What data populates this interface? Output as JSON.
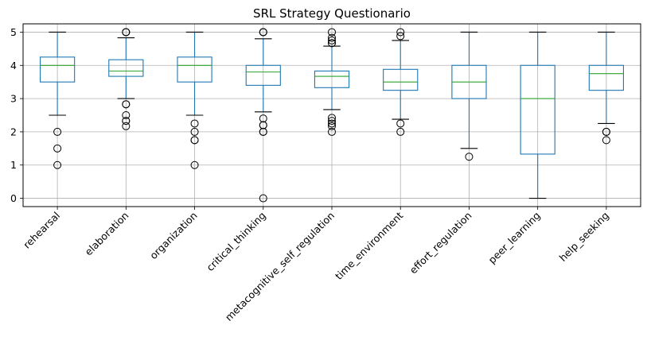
{
  "chart_data": {
    "type": "box",
    "title": "SRL Strategy Questionario",
    "xlabel": "",
    "ylabel": "",
    "ylim": [
      -0.25,
      5.25
    ],
    "yticks": [
      0,
      1,
      2,
      3,
      4,
      5
    ],
    "grid": true,
    "categories": [
      "rehearsal",
      "elaboration",
      "organization",
      "critical_thinking",
      "metacognitive_self_regulation",
      "time_environment",
      "effort_regulation",
      "peer_learning",
      "help_seeking"
    ],
    "boxes": [
      {
        "whisker_low": 2.5,
        "q1": 3.5,
        "median": 4.0,
        "q3": 4.25,
        "whisker_high": 5.0,
        "outliers": [
          2.0,
          1.5,
          1.0
        ]
      },
      {
        "whisker_low": 3.0,
        "q1": 3.67,
        "median": 3.83,
        "q3": 4.17,
        "whisker_high": 4.83,
        "outliers": [
          2.83,
          2.83,
          2.5,
          2.33,
          2.33,
          2.17,
          5.0,
          5.0,
          5.0
        ]
      },
      {
        "whisker_low": 2.5,
        "q1": 3.5,
        "median": 4.0,
        "q3": 4.25,
        "whisker_high": 5.0,
        "outliers": [
          2.25,
          2.0,
          1.75,
          1.75,
          1.0
        ]
      },
      {
        "whisker_low": 2.6,
        "q1": 3.4,
        "median": 3.8,
        "q3": 4.0,
        "whisker_high": 4.8,
        "outliers": [
          5.0,
          5.0,
          5.0,
          2.4,
          2.2,
          2.2,
          2.0,
          2.0,
          0.0
        ]
      },
      {
        "whisker_low": 2.67,
        "q1": 3.33,
        "median": 3.67,
        "q3": 3.83,
        "whisker_high": 4.58,
        "outliers": [
          5.0,
          4.83,
          4.75,
          4.67,
          4.67,
          2.42,
          2.33,
          2.25,
          2.17,
          2.0
        ]
      },
      {
        "whisker_low": 2.38,
        "q1": 3.25,
        "median": 3.5,
        "q3": 3.88,
        "whisker_high": 4.75,
        "outliers": [
          5.0,
          4.88,
          2.25,
          2.0
        ]
      },
      {
        "whisker_low": 1.5,
        "q1": 3.0,
        "median": 3.5,
        "q3": 4.0,
        "whisker_high": 5.0,
        "outliers": [
          1.25
        ]
      },
      {
        "whisker_low": 0.0,
        "q1": 1.33,
        "median": 3.0,
        "q3": 4.0,
        "whisker_high": 5.0,
        "outliers": []
      },
      {
        "whisker_low": 2.25,
        "q1": 3.25,
        "median": 3.75,
        "q3": 4.0,
        "whisker_high": 5.0,
        "outliers": [
          2.0,
          2.0,
          1.75
        ]
      }
    ],
    "colors": {
      "box": "#1f77b4",
      "median": "#2ca02c",
      "grid": "#b0b0b0",
      "outlier": "#000000"
    }
  }
}
